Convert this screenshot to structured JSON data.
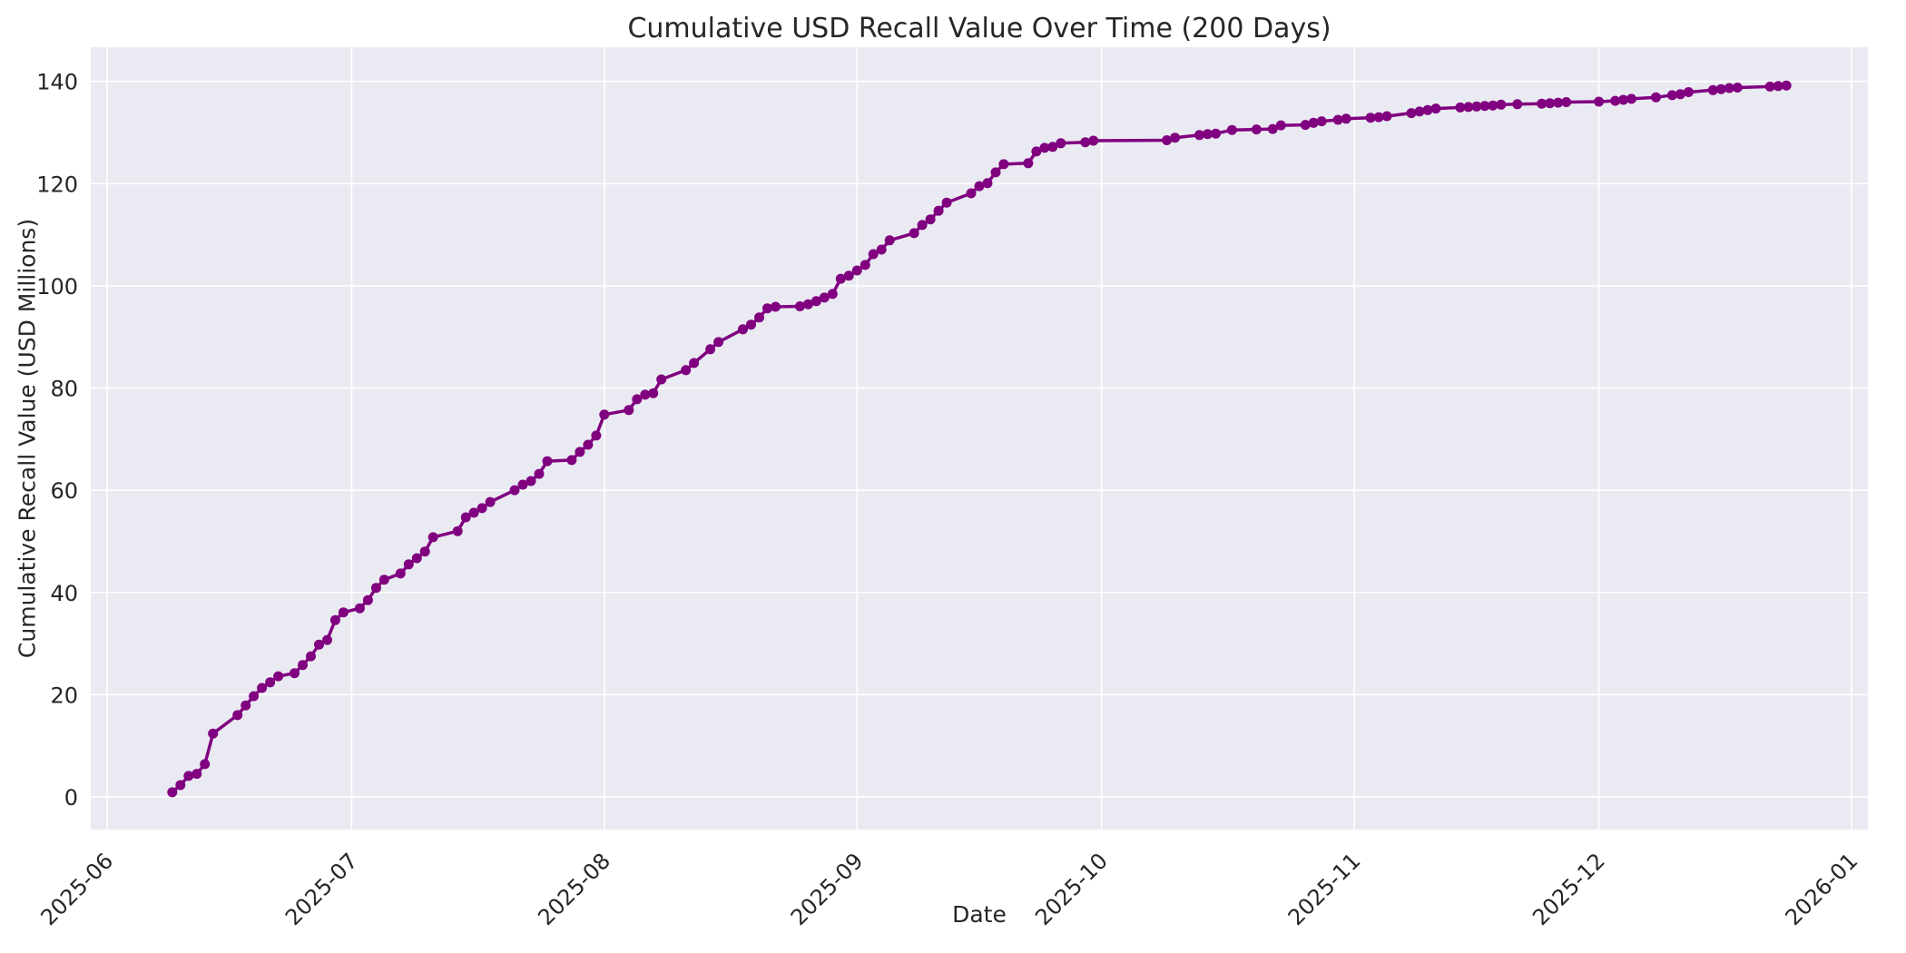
{
  "figure": {
    "title": "Cumulative USD Recall Value Over Time (200 Days)",
    "x_axis_label": "Date",
    "y_axis_label": "Cumulative Recall Value (USD Millions)"
  },
  "chart_data": {
    "type": "line",
    "title": "Cumulative USD Recall Value Over Time (200 Days)",
    "xlabel": "Date",
    "ylabel": "Cumulative Recall Value (USD Millions)",
    "grid": true,
    "legend_position": "none",
    "xlim": [
      "2025-05-30",
      "2026-01-03"
    ],
    "ylim": [
      -6.4,
      146.7
    ],
    "y_ticks": [
      0,
      20,
      40,
      60,
      80,
      100,
      120,
      140
    ],
    "x_ticks": [
      {
        "value": "2025-06-01",
        "label": "2025-06"
      },
      {
        "value": "2025-07-01",
        "label": "2025-07"
      },
      {
        "value": "2025-08-01",
        "label": "2025-08"
      },
      {
        "value": "2025-09-01",
        "label": "2025-09"
      },
      {
        "value": "2025-10-01",
        "label": "2025-10"
      },
      {
        "value": "2025-11-01",
        "label": "2025-11"
      },
      {
        "value": "2025-12-01",
        "label": "2025-12"
      },
      {
        "value": "2026-01-01",
        "label": "2026-01"
      }
    ],
    "styles": {
      "plot_background": "#EAEAF2",
      "figure_background": "#FFFFFF",
      "grid_color": "#FFFFFF",
      "text_color": "#262626",
      "line_color": "#800080",
      "marker": "circle",
      "marker_radius": 5.5,
      "line_width": 3.5
    },
    "series": [
      {
        "name": "cumulative-usd-recall-value",
        "color": "#800080",
        "points": [
          [
            "2025-06-09",
            0.9
          ],
          [
            "2025-06-10",
            2.3
          ],
          [
            "2025-06-11",
            4.1
          ],
          [
            "2025-06-12",
            4.5
          ],
          [
            "2025-06-13",
            6.4
          ],
          [
            "2025-06-14",
            12.4
          ],
          [
            "2025-06-17",
            16.0
          ],
          [
            "2025-06-18",
            17.9
          ],
          [
            "2025-06-19",
            19.7
          ],
          [
            "2025-06-20",
            21.3
          ],
          [
            "2025-06-21",
            22.4
          ],
          [
            "2025-06-22",
            23.6
          ],
          [
            "2025-06-24",
            24.2
          ],
          [
            "2025-06-25",
            25.8
          ],
          [
            "2025-06-26",
            27.5
          ],
          [
            "2025-06-27",
            29.8
          ],
          [
            "2025-06-28",
            30.7
          ],
          [
            "2025-06-29",
            34.6
          ],
          [
            "2025-06-30",
            36.1
          ],
          [
            "2025-07-02",
            36.9
          ],
          [
            "2025-07-03",
            38.5
          ],
          [
            "2025-07-04",
            40.9
          ],
          [
            "2025-07-05",
            42.5
          ],
          [
            "2025-07-07",
            43.7
          ],
          [
            "2025-07-08",
            45.5
          ],
          [
            "2025-07-09",
            46.7
          ],
          [
            "2025-07-10",
            48.0
          ],
          [
            "2025-07-11",
            50.8
          ],
          [
            "2025-07-14",
            52.0
          ],
          [
            "2025-07-15",
            54.7
          ],
          [
            "2025-07-16",
            55.6
          ],
          [
            "2025-07-17",
            56.5
          ],
          [
            "2025-07-18",
            57.7
          ],
          [
            "2025-07-21",
            60.0
          ],
          [
            "2025-07-22",
            61.1
          ],
          [
            "2025-07-23",
            61.8
          ],
          [
            "2025-07-24",
            63.2
          ],
          [
            "2025-07-25",
            65.7
          ],
          [
            "2025-07-28",
            65.9
          ],
          [
            "2025-07-29",
            67.5
          ],
          [
            "2025-07-30",
            68.9
          ],
          [
            "2025-07-31",
            70.7
          ],
          [
            "2025-08-01",
            74.8
          ],
          [
            "2025-08-04",
            75.7
          ],
          [
            "2025-08-05",
            77.8
          ],
          [
            "2025-08-06",
            78.7
          ],
          [
            "2025-08-07",
            79.0
          ],
          [
            "2025-08-08",
            81.7
          ],
          [
            "2025-08-11",
            83.5
          ],
          [
            "2025-08-12",
            84.9
          ],
          [
            "2025-08-14",
            87.6
          ],
          [
            "2025-08-15",
            89.0
          ],
          [
            "2025-08-18",
            91.5
          ],
          [
            "2025-08-19",
            92.4
          ],
          [
            "2025-08-20",
            93.8
          ],
          [
            "2025-08-21",
            95.6
          ],
          [
            "2025-08-22",
            95.9
          ],
          [
            "2025-08-25",
            96.0
          ],
          [
            "2025-08-26",
            96.4
          ],
          [
            "2025-08-27",
            97.0
          ],
          [
            "2025-08-28",
            97.7
          ],
          [
            "2025-08-29",
            98.4
          ],
          [
            "2025-08-30",
            101.4
          ],
          [
            "2025-08-31",
            102.0
          ],
          [
            "2025-09-01",
            103.0
          ],
          [
            "2025-09-02",
            104.1
          ],
          [
            "2025-09-03",
            106.2
          ],
          [
            "2025-09-04",
            107.1
          ],
          [
            "2025-09-05",
            108.9
          ],
          [
            "2025-09-08",
            110.3
          ],
          [
            "2025-09-09",
            111.9
          ],
          [
            "2025-09-10",
            113.0
          ],
          [
            "2025-09-11",
            114.7
          ],
          [
            "2025-09-12",
            116.3
          ],
          [
            "2025-09-15",
            118.1
          ],
          [
            "2025-09-16",
            119.5
          ],
          [
            "2025-09-17",
            120.1
          ],
          [
            "2025-09-18",
            122.2
          ],
          [
            "2025-09-19",
            123.8
          ],
          [
            "2025-09-22",
            124.0
          ],
          [
            "2025-09-23",
            126.3
          ],
          [
            "2025-09-24",
            127.0
          ],
          [
            "2025-09-25",
            127.2
          ],
          [
            "2025-09-26",
            127.9
          ],
          [
            "2025-09-29",
            128.1
          ],
          [
            "2025-09-30",
            128.4
          ],
          [
            "2025-10-09",
            128.5
          ],
          [
            "2025-10-10",
            129.0
          ],
          [
            "2025-10-13",
            129.5
          ],
          [
            "2025-10-14",
            129.7
          ],
          [
            "2025-10-15",
            129.8
          ],
          [
            "2025-10-17",
            130.5
          ],
          [
            "2025-10-20",
            130.6
          ],
          [
            "2025-10-22",
            130.7
          ],
          [
            "2025-10-23",
            131.4
          ],
          [
            "2025-10-26",
            131.5
          ],
          [
            "2025-10-27",
            131.9
          ],
          [
            "2025-10-28",
            132.2
          ],
          [
            "2025-10-30",
            132.5
          ],
          [
            "2025-10-31",
            132.7
          ],
          [
            "2025-11-03",
            132.9
          ],
          [
            "2025-11-04",
            133.0
          ],
          [
            "2025-11-05",
            133.2
          ],
          [
            "2025-11-08",
            133.8
          ],
          [
            "2025-11-09",
            134.1
          ],
          [
            "2025-11-10",
            134.4
          ],
          [
            "2025-11-11",
            134.7
          ],
          [
            "2025-11-14",
            134.9
          ],
          [
            "2025-11-15",
            135.0
          ],
          [
            "2025-11-16",
            135.1
          ],
          [
            "2025-11-17",
            135.2
          ],
          [
            "2025-11-18",
            135.3
          ],
          [
            "2025-11-19",
            135.45
          ],
          [
            "2025-11-21",
            135.55
          ],
          [
            "2025-11-24",
            135.65
          ],
          [
            "2025-11-25",
            135.75
          ],
          [
            "2025-11-26",
            135.85
          ],
          [
            "2025-11-27",
            135.95
          ],
          [
            "2025-12-01",
            136.05
          ],
          [
            "2025-12-03",
            136.2
          ],
          [
            "2025-12-04",
            136.4
          ],
          [
            "2025-12-05",
            136.6
          ],
          [
            "2025-12-08",
            136.9
          ],
          [
            "2025-12-10",
            137.3
          ],
          [
            "2025-12-11",
            137.5
          ],
          [
            "2025-12-12",
            137.9
          ],
          [
            "2025-12-15",
            138.3
          ],
          [
            "2025-12-16",
            138.5
          ],
          [
            "2025-12-17",
            138.7
          ],
          [
            "2025-12-18",
            138.8
          ],
          [
            "2025-12-22",
            139.0
          ],
          [
            "2025-12-23",
            139.1
          ],
          [
            "2025-12-24",
            139.2
          ]
        ]
      }
    ]
  }
}
